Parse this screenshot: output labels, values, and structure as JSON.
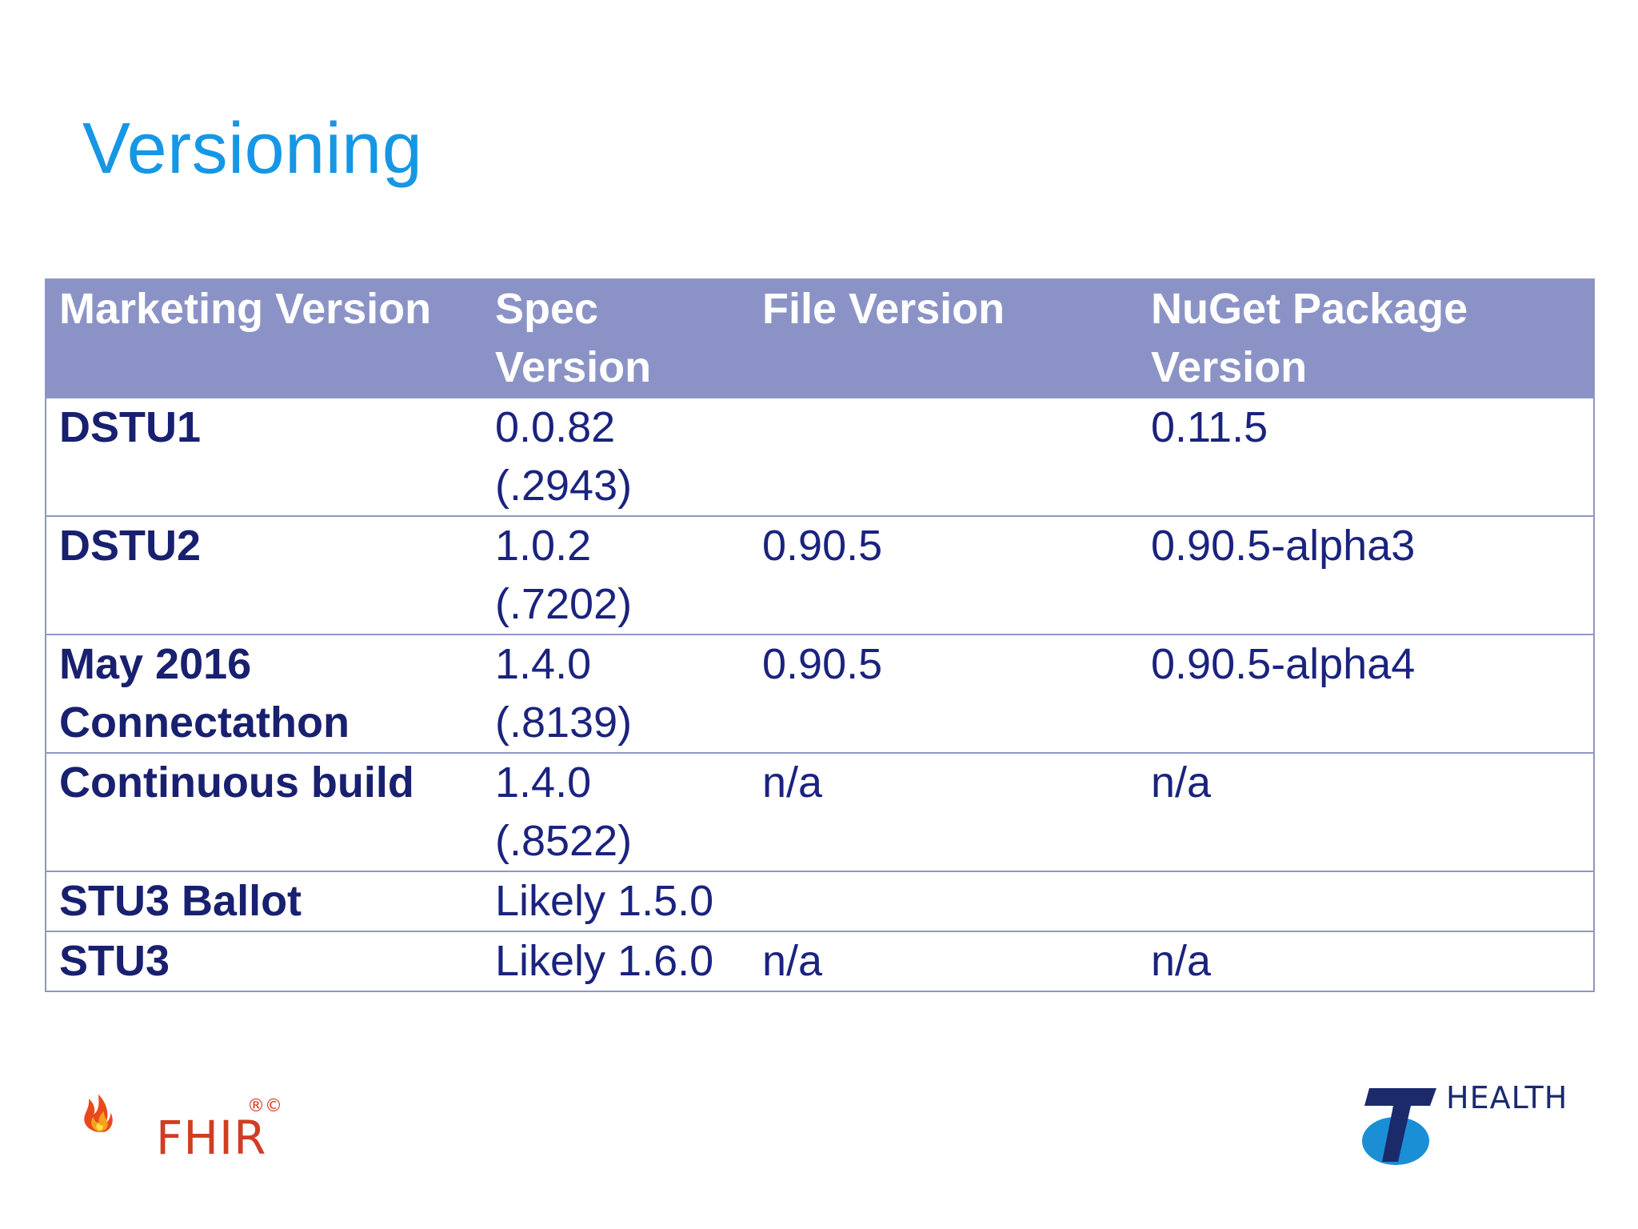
{
  "slide": {
    "title": "Versioning"
  },
  "table": {
    "headers": [
      "Marketing Version",
      "Spec Version",
      "File Version",
      "NuGet Package Version"
    ],
    "rows": [
      [
        "DSTU1",
        "0.0.82 (.2943)",
        "",
        "0.11.5"
      ],
      [
        "DSTU2",
        "1.0.2 (.7202)",
        "0.90.5",
        "0.90.5-alpha3"
      ],
      [
        "May 2016 Connectathon",
        "1.4.0 (.8139)",
        "0.90.5",
        "0.90.5-alpha4"
      ],
      [
        "Continuous build",
        "1.4.0 (.8522)",
        "n/a",
        "n/a"
      ],
      [
        "STU3 Ballot",
        "Likely 1.5.0",
        "",
        ""
      ],
      [
        "STU3",
        "Likely 1.6.0",
        "n/a",
        "n/a"
      ]
    ]
  },
  "logos": {
    "fhir": {
      "text": "FHIR",
      "marks": "®©"
    },
    "telstra": {
      "text": "HEALTH"
    }
  },
  "colors": {
    "title": "#1597e5",
    "header_bg": "#8b93c6",
    "body_text": "#1a237e",
    "fhir_red": "#d13c22",
    "telstra_blue": "#1b6fb5"
  }
}
